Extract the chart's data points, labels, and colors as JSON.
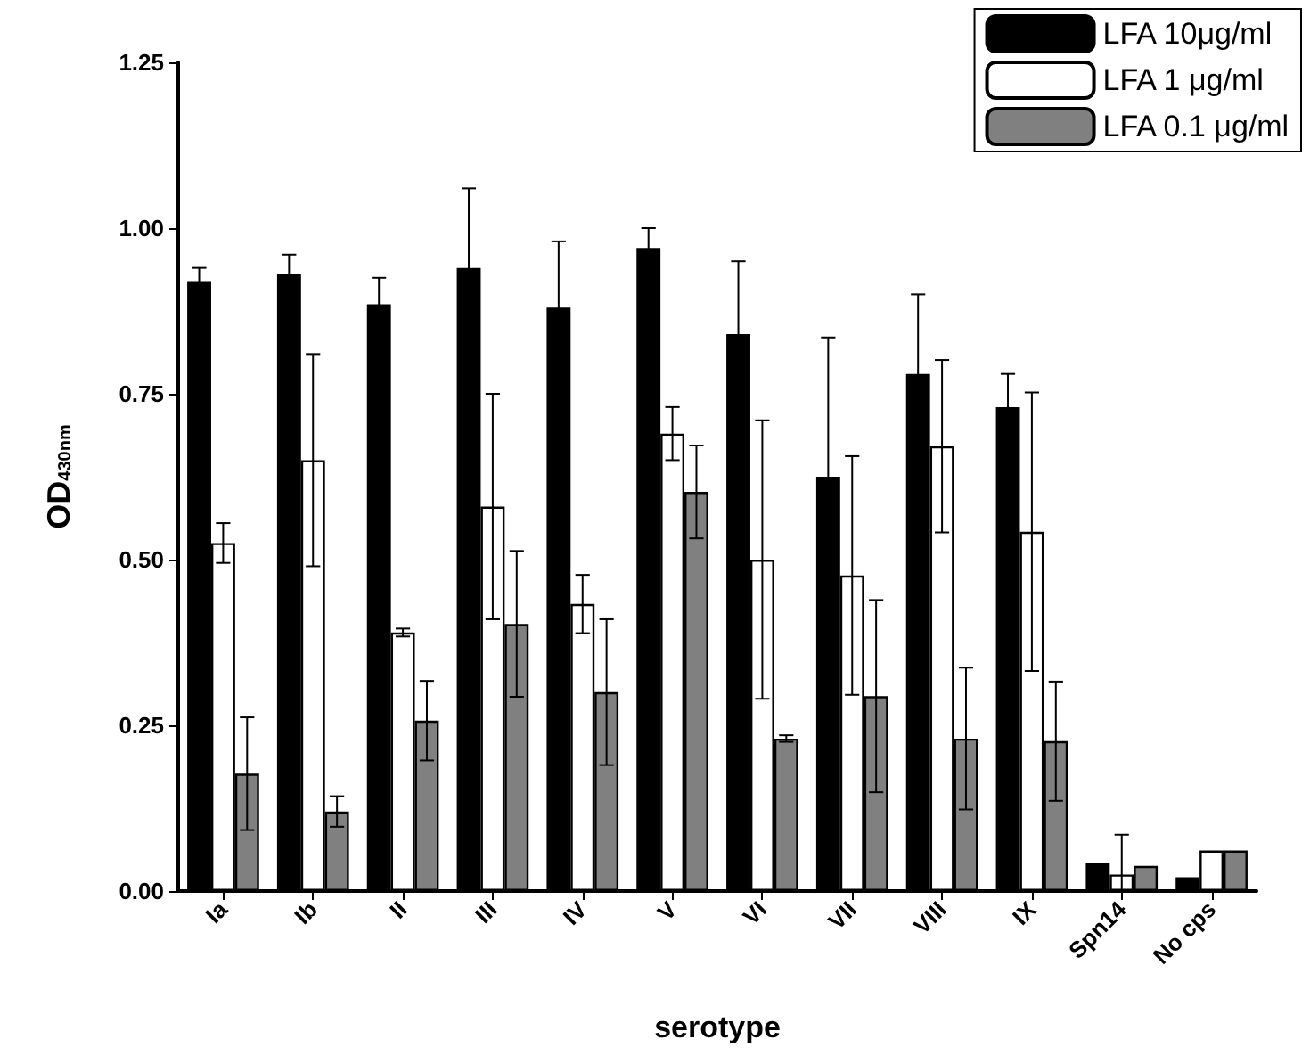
{
  "chart_data": {
    "type": "bar",
    "xlabel": "serotype",
    "ylabel": "OD$_{430nm}$",
    "categories": [
      "Ia",
      "Ib",
      "II",
      "III",
      "IV",
      "V",
      "VI",
      "VII",
      "VIII",
      "IX",
      "Spn14",
      "No cps"
    ],
    "series": [
      {
        "name": "LFA 10μg/ml",
        "color": "#000000",
        "values": [
          0.92,
          0.93,
          0.885,
          0.94,
          0.88,
          0.97,
          0.84,
          0.625,
          0.78,
          0.73,
          0.042,
          0.021
        ],
        "errors": [
          0.02,
          0.03,
          0.04,
          0.12,
          0.1,
          0.03,
          0.11,
          0.21,
          0.12,
          0.05,
          null,
          null
        ]
      },
      {
        "name": "LFA 1 μg/ml",
        "color": "#ffffff",
        "values": [
          0.525,
          0.65,
          0.39,
          0.58,
          0.433,
          0.69,
          0.5,
          0.476,
          0.671,
          0.542,
          0.025,
          0.061
        ],
        "errors": [
          0.03,
          0.16,
          0.006,
          0.17,
          0.044,
          0.04,
          0.21,
          0.18,
          0.13,
          0.21,
          [
            0,
            0.085
          ],
          null
        ]
      },
      {
        "name": "LFA 0.1 μg/ml",
        "color": "#808080",
        "values": [
          0.177,
          0.12,
          0.257,
          0.403,
          0.3,
          0.602,
          0.23,
          0.294,
          0.23,
          0.226,
          0.038,
          0.061
        ],
        "errors": [
          0.085,
          0.023,
          0.06,
          0.11,
          0.11,
          0.07,
          0.005,
          0.145,
          0.107,
          0.09,
          null,
          null
        ]
      }
    ],
    "ylim": [
      0,
      1.25
    ],
    "yticks": [
      {
        "value": 0,
        "label": "0.00"
      },
      {
        "value": 0.25,
        "label": "0.25"
      },
      {
        "value": 0.5,
        "label": "0.50"
      },
      {
        "value": 0.75,
        "label": "0.75"
      },
      {
        "value": 1,
        "label": "1.00"
      },
      {
        "value": 1.25,
        "label": "1.25"
      }
    ],
    "grid": false,
    "legend": "top right"
  }
}
